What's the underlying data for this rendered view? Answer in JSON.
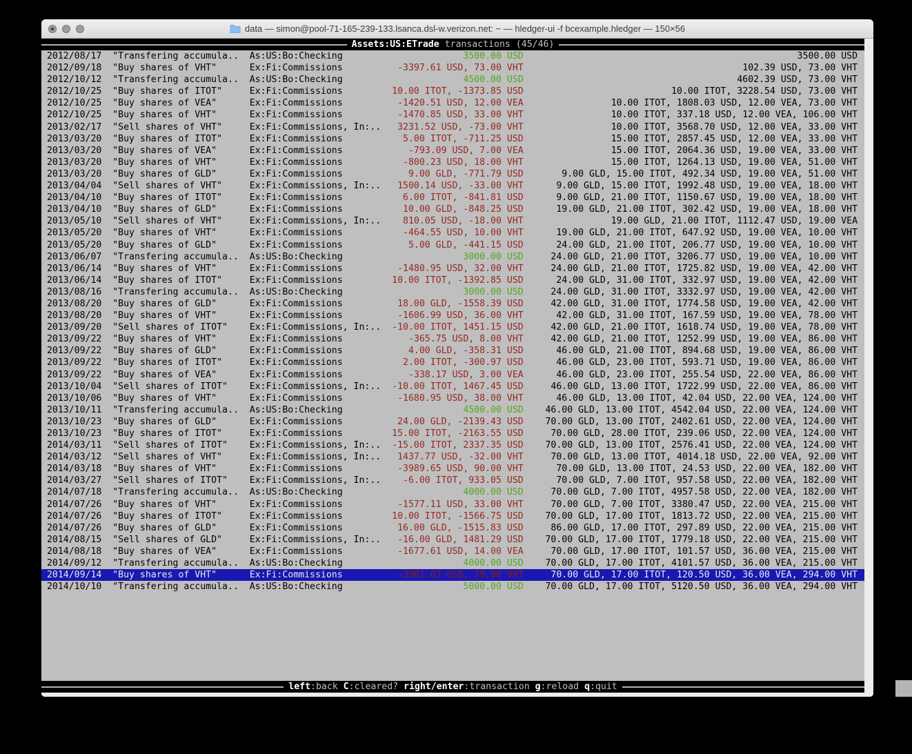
{
  "titlebar": {
    "title": "data — simon@pool-71-165-239-133.lsanca.dsl-w.verizon.net: ~ — hledger-ui -f bcexample.hledger — 150×56"
  },
  "screen_header": {
    "account": "Assets:US:ETrade",
    "rest": " transactions (45/46)"
  },
  "footer_hints": [
    {
      "key": "left",
      "desc": ":back"
    },
    {
      "key": "C",
      "desc": ":cleared?"
    },
    {
      "key": "right/enter",
      "desc": ":transaction"
    },
    {
      "key": "g",
      "desc": ":reload"
    },
    {
      "key": "q",
      "desc": ":quit"
    }
  ],
  "colors": {
    "terminal_bg": "#bfbfbf",
    "band_bg": "#000000",
    "negative_amount": "#962821",
    "positive_amount": "#55a61e",
    "selection_bg": "#1a18b0",
    "selection_text": "#e9e9e9"
  },
  "register": {
    "selected_index": 44,
    "rows": [
      {
        "date": "2012/08/17",
        "description": "\"Transfering accumula..",
        "account": "As:US:Bo:Checking",
        "change": "3500.00 USD",
        "change_color": "green",
        "balance": "3500.00 USD"
      },
      {
        "date": "2012/09/18",
        "description": "\"Buy shares of VHT\"",
        "account": "Ex:Fi:Commissions",
        "change": "-3397.61 USD, 73.00 VHT",
        "change_color": "red",
        "balance": "102.39 USD, 73.00 VHT"
      },
      {
        "date": "2012/10/12",
        "description": "\"Transfering accumula..",
        "account": "As:US:Bo:Checking",
        "change": "4500.00 USD",
        "change_color": "green",
        "balance": "4602.39 USD, 73.00 VHT"
      },
      {
        "date": "2012/10/25",
        "description": "\"Buy shares of ITOT\"",
        "account": "Ex:Fi:Commissions",
        "change": "10.00 ITOT, -1373.85 USD",
        "change_color": "red",
        "balance": "10.00 ITOT, 3228.54 USD, 73.00 VHT"
      },
      {
        "date": "2012/10/25",
        "description": "\"Buy shares of VEA\"",
        "account": "Ex:Fi:Commissions",
        "change": "-1420.51 USD, 12.00 VEA",
        "change_color": "red",
        "balance": "10.00 ITOT, 1808.03 USD, 12.00 VEA, 73.00 VHT"
      },
      {
        "date": "2012/10/25",
        "description": "\"Buy shares of VHT\"",
        "account": "Ex:Fi:Commissions",
        "change": "-1470.85 USD, 33.00 VHT",
        "change_color": "red",
        "balance": "10.00 ITOT, 337.18 USD, 12.00 VEA, 106.00 VHT"
      },
      {
        "date": "2013/02/17",
        "description": "\"Sell shares of VHT\"",
        "account": "Ex:Fi:Commissions, In:..",
        "change": "3231.52 USD, -73.00 VHT",
        "change_color": "red",
        "balance": "10.00 ITOT, 3568.70 USD, 12.00 VEA, 33.00 VHT"
      },
      {
        "date": "2013/03/20",
        "description": "\"Buy shares of ITOT\"",
        "account": "Ex:Fi:Commissions",
        "change": "5.00 ITOT, -711.25 USD",
        "change_color": "red",
        "balance": "15.00 ITOT, 2857.45 USD, 12.00 VEA, 33.00 VHT"
      },
      {
        "date": "2013/03/20",
        "description": "\"Buy shares of VEA\"",
        "account": "Ex:Fi:Commissions",
        "change": "-793.09 USD, 7.00 VEA",
        "change_color": "red",
        "balance": "15.00 ITOT, 2064.36 USD, 19.00 VEA, 33.00 VHT"
      },
      {
        "date": "2013/03/20",
        "description": "\"Buy shares of VHT\"",
        "account": "Ex:Fi:Commissions",
        "change": "-800.23 USD, 18.00 VHT",
        "change_color": "red",
        "balance": "15.00 ITOT, 1264.13 USD, 19.00 VEA, 51.00 VHT"
      },
      {
        "date": "2013/03/20",
        "description": "\"Buy shares of GLD\"",
        "account": "Ex:Fi:Commissions",
        "change": "9.00 GLD, -771.79 USD",
        "change_color": "red",
        "balance": "9.00 GLD, 15.00 ITOT, 492.34 USD, 19.00 VEA, 51.00 VHT"
      },
      {
        "date": "2013/04/04",
        "description": "\"Sell shares of VHT\"",
        "account": "Ex:Fi:Commissions, In:..",
        "change": "1500.14 USD, -33.00 VHT",
        "change_color": "red",
        "balance": "9.00 GLD, 15.00 ITOT, 1992.48 USD, 19.00 VEA, 18.00 VHT"
      },
      {
        "date": "2013/04/10",
        "description": "\"Buy shares of ITOT\"",
        "account": "Ex:Fi:Commissions",
        "change": "6.00 ITOT, -841.81 USD",
        "change_color": "red",
        "balance": "9.00 GLD, 21.00 ITOT, 1150.67 USD, 19.00 VEA, 18.00 VHT"
      },
      {
        "date": "2013/04/10",
        "description": "\"Buy shares of GLD\"",
        "account": "Ex:Fi:Commissions",
        "change": "10.00 GLD, -848.25 USD",
        "change_color": "red",
        "balance": "19.00 GLD, 21.00 ITOT, 302.42 USD, 19.00 VEA, 18.00 VHT"
      },
      {
        "date": "2013/05/10",
        "description": "\"Sell shares of VHT\"",
        "account": "Ex:Fi:Commissions, In:..",
        "change": "810.05 USD, -18.00 VHT",
        "change_color": "red",
        "balance": "19.00 GLD, 21.00 ITOT, 1112.47 USD, 19.00 VEA"
      },
      {
        "date": "2013/05/20",
        "description": "\"Buy shares of VHT\"",
        "account": "Ex:Fi:Commissions",
        "change": "-464.55 USD, 10.00 VHT",
        "change_color": "red",
        "balance": "19.00 GLD, 21.00 ITOT, 647.92 USD, 19.00 VEA, 10.00 VHT"
      },
      {
        "date": "2013/05/20",
        "description": "\"Buy shares of GLD\"",
        "account": "Ex:Fi:Commissions",
        "change": "5.00 GLD, -441.15 USD",
        "change_color": "red",
        "balance": "24.00 GLD, 21.00 ITOT, 206.77 USD, 19.00 VEA, 10.00 VHT"
      },
      {
        "date": "2013/06/07",
        "description": "\"Transfering accumula..",
        "account": "As:US:Bo:Checking",
        "change": "3000.00 USD",
        "change_color": "green",
        "balance": "24.00 GLD, 21.00 ITOT, 3206.77 USD, 19.00 VEA, 10.00 VHT"
      },
      {
        "date": "2013/06/14",
        "description": "\"Buy shares of VHT\"",
        "account": "Ex:Fi:Commissions",
        "change": "-1480.95 USD, 32.00 VHT",
        "change_color": "red",
        "balance": "24.00 GLD, 21.00 ITOT, 1725.82 USD, 19.00 VEA, 42.00 VHT"
      },
      {
        "date": "2013/06/14",
        "description": "\"Buy shares of ITOT\"",
        "account": "Ex:Fi:Commissions",
        "change": "10.00 ITOT, -1392.85 USD",
        "change_color": "red",
        "balance": "24.00 GLD, 31.00 ITOT, 332.97 USD, 19.00 VEA, 42.00 VHT"
      },
      {
        "date": "2013/08/16",
        "description": "\"Transfering accumula..",
        "account": "As:US:Bo:Checking",
        "change": "3000.00 USD",
        "change_color": "green",
        "balance": "24.00 GLD, 31.00 ITOT, 3332.97 USD, 19.00 VEA, 42.00 VHT"
      },
      {
        "date": "2013/08/20",
        "description": "\"Buy shares of GLD\"",
        "account": "Ex:Fi:Commissions",
        "change": "18.00 GLD, -1558.39 USD",
        "change_color": "red",
        "balance": "42.00 GLD, 31.00 ITOT, 1774.58 USD, 19.00 VEA, 42.00 VHT"
      },
      {
        "date": "2013/08/20",
        "description": "\"Buy shares of VHT\"",
        "account": "Ex:Fi:Commissions",
        "change": "-1606.99 USD, 36.00 VHT",
        "change_color": "red",
        "balance": "42.00 GLD, 31.00 ITOT, 167.59 USD, 19.00 VEA, 78.00 VHT"
      },
      {
        "date": "2013/09/20",
        "description": "\"Sell shares of ITOT\"",
        "account": "Ex:Fi:Commissions, In:..",
        "change": "-10.00 ITOT, 1451.15 USD",
        "change_color": "red",
        "balance": "42.00 GLD, 21.00 ITOT, 1618.74 USD, 19.00 VEA, 78.00 VHT"
      },
      {
        "date": "2013/09/22",
        "description": "\"Buy shares of VHT\"",
        "account": "Ex:Fi:Commissions",
        "change": "-365.75 USD, 8.00 VHT",
        "change_color": "red",
        "balance": "42.00 GLD, 21.00 ITOT, 1252.99 USD, 19.00 VEA, 86.00 VHT"
      },
      {
        "date": "2013/09/22",
        "description": "\"Buy shares of GLD\"",
        "account": "Ex:Fi:Commissions",
        "change": "4.00 GLD, -358.31 USD",
        "change_color": "red",
        "balance": "46.00 GLD, 21.00 ITOT, 894.68 USD, 19.00 VEA, 86.00 VHT"
      },
      {
        "date": "2013/09/22",
        "description": "\"Buy shares of ITOT\"",
        "account": "Ex:Fi:Commissions",
        "change": "2.00 ITOT, -300.97 USD",
        "change_color": "red",
        "balance": "46.00 GLD, 23.00 ITOT, 593.71 USD, 19.00 VEA, 86.00 VHT"
      },
      {
        "date": "2013/09/22",
        "description": "\"Buy shares of VEA\"",
        "account": "Ex:Fi:Commissions",
        "change": "-338.17 USD, 3.00 VEA",
        "change_color": "red",
        "balance": "46.00 GLD, 23.00 ITOT, 255.54 USD, 22.00 VEA, 86.00 VHT"
      },
      {
        "date": "2013/10/04",
        "description": "\"Sell shares of ITOT\"",
        "account": "Ex:Fi:Commissions, In:..",
        "change": "-10.00 ITOT, 1467.45 USD",
        "change_color": "red",
        "balance": "46.00 GLD, 13.00 ITOT, 1722.99 USD, 22.00 VEA, 86.00 VHT"
      },
      {
        "date": "2013/10/06",
        "description": "\"Buy shares of VHT\"",
        "account": "Ex:Fi:Commissions",
        "change": "-1680.95 USD, 38.00 VHT",
        "change_color": "red",
        "balance": "46.00 GLD, 13.00 ITOT, 42.04 USD, 22.00 VEA, 124.00 VHT"
      },
      {
        "date": "2013/10/11",
        "description": "\"Transfering accumula..",
        "account": "As:US:Bo:Checking",
        "change": "4500.00 USD",
        "change_color": "green",
        "balance": "46.00 GLD, 13.00 ITOT, 4542.04 USD, 22.00 VEA, 124.00 VHT"
      },
      {
        "date": "2013/10/23",
        "description": "\"Buy shares of GLD\"",
        "account": "Ex:Fi:Commissions",
        "change": "24.00 GLD, -2139.43 USD",
        "change_color": "red",
        "balance": "70.00 GLD, 13.00 ITOT, 2402.61 USD, 22.00 VEA, 124.00 VHT"
      },
      {
        "date": "2013/10/23",
        "description": "\"Buy shares of ITOT\"",
        "account": "Ex:Fi:Commissions",
        "change": "15.00 ITOT, -2163.55 USD",
        "change_color": "red",
        "balance": "70.00 GLD, 28.00 ITOT, 239.06 USD, 22.00 VEA, 124.00 VHT"
      },
      {
        "date": "2014/03/11",
        "description": "\"Sell shares of ITOT\"",
        "account": "Ex:Fi:Commissions, In:..",
        "change": "-15.00 ITOT, 2337.35 USD",
        "change_color": "red",
        "balance": "70.00 GLD, 13.00 ITOT, 2576.41 USD, 22.00 VEA, 124.00 VHT"
      },
      {
        "date": "2014/03/12",
        "description": "\"Sell shares of VHT\"",
        "account": "Ex:Fi:Commissions, In:..",
        "change": "1437.77 USD, -32.00 VHT",
        "change_color": "red",
        "balance": "70.00 GLD, 13.00 ITOT, 4014.18 USD, 22.00 VEA, 92.00 VHT"
      },
      {
        "date": "2014/03/18",
        "description": "\"Buy shares of VHT\"",
        "account": "Ex:Fi:Commissions",
        "change": "-3989.65 USD, 90.00 VHT",
        "change_color": "red",
        "balance": "70.00 GLD, 13.00 ITOT, 24.53 USD, 22.00 VEA, 182.00 VHT"
      },
      {
        "date": "2014/03/27",
        "description": "\"Sell shares of ITOT\"",
        "account": "Ex:Fi:Commissions, In:..",
        "change": "-6.00 ITOT, 933.05 USD",
        "change_color": "red",
        "balance": "70.00 GLD, 7.00 ITOT, 957.58 USD, 22.00 VEA, 182.00 VHT"
      },
      {
        "date": "2014/07/18",
        "description": "\"Transfering accumula..",
        "account": "As:US:Bo:Checking",
        "change": "4000.00 USD",
        "change_color": "green",
        "balance": "70.00 GLD, 7.00 ITOT, 4957.58 USD, 22.00 VEA, 182.00 VHT"
      },
      {
        "date": "2014/07/26",
        "description": "\"Buy shares of VHT\"",
        "account": "Ex:Fi:Commissions",
        "change": "-1577.11 USD, 33.00 VHT",
        "change_color": "red",
        "balance": "70.00 GLD, 7.00 ITOT, 3380.47 USD, 22.00 VEA, 215.00 VHT"
      },
      {
        "date": "2014/07/26",
        "description": "\"Buy shares of ITOT\"",
        "account": "Ex:Fi:Commissions",
        "change": "10.00 ITOT, -1566.75 USD",
        "change_color": "red",
        "balance": "70.00 GLD, 17.00 ITOT, 1813.72 USD, 22.00 VEA, 215.00 VHT"
      },
      {
        "date": "2014/07/26",
        "description": "\"Buy shares of GLD\"",
        "account": "Ex:Fi:Commissions",
        "change": "16.00 GLD, -1515.83 USD",
        "change_color": "red",
        "balance": "86.00 GLD, 17.00 ITOT, 297.89 USD, 22.00 VEA, 215.00 VHT"
      },
      {
        "date": "2014/08/15",
        "description": "\"Sell shares of GLD\"",
        "account": "Ex:Fi:Commissions, In:..",
        "change": "-16.00 GLD, 1481.29 USD",
        "change_color": "red",
        "balance": "70.00 GLD, 17.00 ITOT, 1779.18 USD, 22.00 VEA, 215.00 VHT"
      },
      {
        "date": "2014/08/18",
        "description": "\"Buy shares of VEA\"",
        "account": "Ex:Fi:Commissions",
        "change": "-1677.61 USD, 14.00 VEA",
        "change_color": "red",
        "balance": "70.00 GLD, 17.00 ITOT, 101.57 USD, 36.00 VEA, 215.00 VHT"
      },
      {
        "date": "2014/09/12",
        "description": "\"Transfering accumula..",
        "account": "As:US:Bo:Checking",
        "change": "4000.00 USD",
        "change_color": "green",
        "balance": "70.00 GLD, 17.00 ITOT, 4101.57 USD, 36.00 VEA, 215.00 VHT"
      },
      {
        "date": "2014/09/14",
        "description": "\"Buy shares of VHT\"",
        "account": "Ex:Fi:Commissions",
        "change": "-3981.07 USD, 79.00 VHT",
        "change_color": "red",
        "balance": "70.00 GLD, 17.00 ITOT, 120.50 USD, 36.00 VEA, 294.00 VHT"
      },
      {
        "date": "2014/10/10",
        "description": "\"Transfering accumula..",
        "account": "As:US:Bo:Checking",
        "change": "5000.00 USD",
        "change_color": "green",
        "balance": "70.00 GLD, 17.00 ITOT, 5120.50 USD, 36.00 VEA, 294.00 VHT"
      }
    ]
  }
}
